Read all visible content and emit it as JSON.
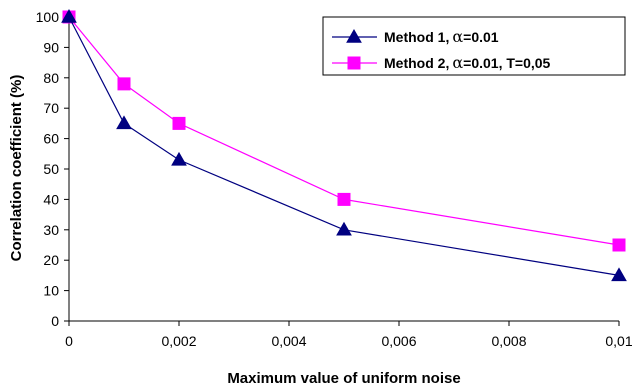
{
  "chart_data": {
    "type": "line",
    "xlabel": "Maximum value of uniform noise",
    "ylabel": "Correlation coefficient (%)",
    "xlim": [
      0,
      0.01
    ],
    "ylim": [
      0,
      100
    ],
    "x_ticks": [
      0,
      0.002,
      0.004,
      0.006,
      0.008,
      0.01
    ],
    "x_tick_labels": [
      "0",
      "0,002",
      "0,004",
      "0,006",
      "0,008",
      "0,01"
    ],
    "y_ticks": [
      0,
      10,
      20,
      30,
      40,
      50,
      60,
      70,
      80,
      90,
      100
    ],
    "y_tick_labels": [
      "0",
      "10",
      "20",
      "30",
      "40",
      "50",
      "60",
      "70",
      "80",
      "90",
      "100"
    ],
    "grid": false,
    "legend_position": "top-right",
    "x": [
      0,
      0.001,
      0.002,
      0.005,
      0.01
    ],
    "series": [
      {
        "name": "Method 1, α=0.01",
        "name_parts": [
          "Method 1,",
          "α",
          "=0.01"
        ],
        "marker": "triangle",
        "color": "#000080",
        "values": [
          100,
          65,
          53,
          30,
          15
        ]
      },
      {
        "name": "Method 2, α=0.01, T=0,05",
        "name_parts": [
          "Method 2,",
          "α",
          "=0.01, T=0,05"
        ],
        "marker": "square",
        "color": "#ff00ff",
        "values": [
          100,
          78,
          65,
          40,
          25
        ]
      }
    ]
  }
}
